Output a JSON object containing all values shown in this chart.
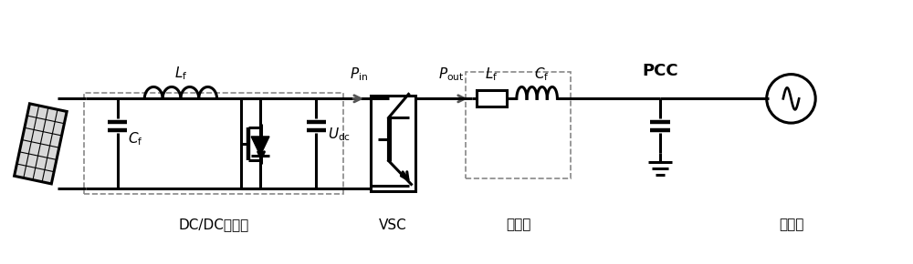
{
  "bg_color": "#ffffff",
  "line_color": "#000000",
  "line_width": 2.2,
  "dashed_color": "#888888",
  "arrow_color": "#555555",
  "labels": {
    "Lf_top": "$L_{\\mathrm{f}}$",
    "Cf_left": "$C_{\\mathrm{f}}$",
    "Udc": "$U_{\\mathrm{dc}}$",
    "Pin": "$P_{\\mathrm{in}}$",
    "Pout": "$P_{\\mathrm{out}}$",
    "Lf_filter": "$L_{\\mathrm{f}}$",
    "Cf_filter": "$C_{\\mathrm{f}}$",
    "PCC": "PCC",
    "VSC": "VSC",
    "DCDC": "DC/DC逆变器",
    "filter": "滤波器",
    "grid": "主电网"
  }
}
